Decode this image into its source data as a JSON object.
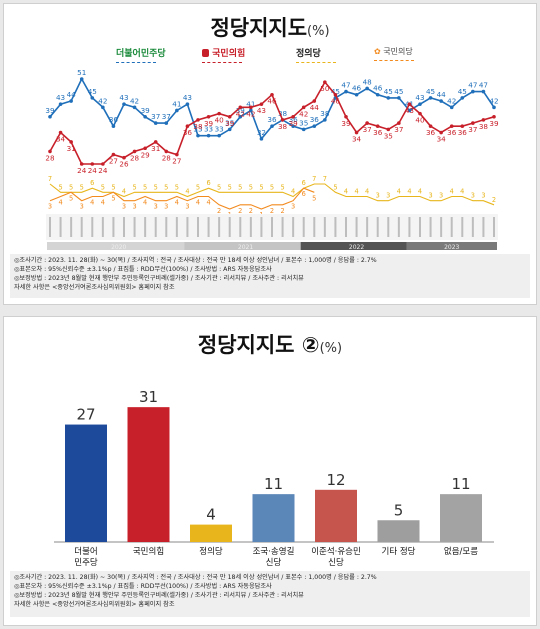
{
  "panel1": {
    "title": "정당지지도",
    "unit": "(%)",
    "legend": {
      "dem": "더불어민주당",
      "ppp": "국민의힘",
      "justice": "정의당",
      "new_label": "국민의당"
    },
    "periods": [
      "2020",
      "2021",
      "2022",
      "2023"
    ],
    "notes": [
      "◎조사기간 : 2023. 11. 28(화) ~ 30(목) / 조사지역 : 전국 / 조사대상 : 전국 만 18세 이상 성인남녀 / 표본수 : 1,000명 / 응답률 : 2.7%",
      "◎표본오차 : 95%신뢰수준 ±3.1%p / 표집틀 : RDD무선(100%) / 조사방법 : ARS 자동응답조사",
      "◎보정방법 : 2023년 8월말 현재 행안부 주민등록인구비례(셀가중) / 조사기관 : 리서치뷰 / 조사주관 : 리서치뷰",
      "자세한 사항은 <중앙선거여론조사심의위원회> 홈페이지 참조"
    ]
  },
  "panel2": {
    "title": "정당지지도 ②",
    "unit": "(%)",
    "notes": [
      "◎조사기간 : 2023. 11. 28(화) ~ 30(목) / 조사지역 : 전국 / 조사대상 : 전국 만 18세 이상 성인남녀 / 표본수 : 1,000명 / 응답률 : 2.7%",
      "◎표본오차 : 95%신뢰수준 ±3.1%p / 표집틀 : RDD무선(100%) / 조사방법 : ARS 자동응답조사",
      "◎보정방법 : 2023년 8월말 현재 행안부 주민등록인구비례(셀가중) / 조사기관 : 리서치뷰 / 조사주관 : 리서치뷰",
      "자세한 사항은 <중앙선거여론조사심의위원회> 홈페이지 참조"
    ]
  },
  "chart_data": [
    {
      "type": "line",
      "title": "정당지지도",
      "unit": "(%)",
      "legend_position": "top",
      "periods": [
        "2020",
        "2021",
        "2022",
        "2023"
      ],
      "series": [
        {
          "name": "더불어민주당",
          "color": "#1f6fba",
          "values": [
            39,
            43,
            44,
            51,
            45,
            42,
            36,
            43,
            42,
            39,
            37,
            37,
            41,
            43,
            33,
            33,
            33,
            35,
            39,
            41,
            32,
            36,
            38,
            36,
            35,
            36,
            38,
            45,
            47,
            46,
            48,
            46,
            45,
            45,
            41,
            43,
            45,
            44,
            42,
            45,
            47,
            47,
            42
          ]
        },
        {
          "name": "국민의힘",
          "color": "#c8202a",
          "values": [
            28,
            34,
            31,
            24,
            24,
            24,
            27,
            26,
            28,
            29,
            31,
            28,
            27,
            36,
            38,
            39,
            40,
            39,
            42,
            42,
            43,
            46,
            38,
            39,
            42,
            44,
            50,
            46,
            39,
            34,
            37,
            36,
            35,
            37,
            43,
            40,
            36,
            34,
            36,
            36,
            37,
            38,
            39
          ]
        },
        {
          "name": "정의당",
          "color": "#e8b61c",
          "values": [
            7,
            5,
            5,
            5,
            6,
            5,
            5,
            4,
            5,
            5,
            5,
            5,
            5,
            4,
            5,
            6,
            5,
            5,
            5,
            5,
            5,
            5,
            5,
            4,
            6,
            7,
            7,
            5,
            4,
            4,
            4,
            3,
            3,
            4,
            4,
            4,
            3,
            3,
            4,
            4,
            3,
            3,
            2
          ]
        },
        {
          "name": "국민의당",
          "color": "#f28a1e",
          "values": [
            3,
            4,
            5,
            3,
            4,
            4,
            5,
            3,
            3,
            4,
            3,
            3,
            4,
            3,
            4,
            4,
            2,
            1,
            2,
            2,
            1,
            2,
            2,
            3,
            6,
            5,
            null,
            null,
            null,
            null,
            null,
            null,
            null,
            null,
            null,
            null,
            null,
            null,
            null,
            null,
            null,
            null,
            null
          ]
        }
      ]
    },
    {
      "type": "bar",
      "title": "정당지지도 ②",
      "unit": "(%)",
      "categories": [
        "더불어\n민주당",
        "국민의힘",
        "정의당",
        "조국·송영길\n신당",
        "이준석·유승민\n신당",
        "기타 정당",
        "없음/모름"
      ],
      "values": [
        27,
        31,
        4,
        11,
        12,
        5,
        11
      ],
      "colors": [
        "#1e4a9c",
        "#c8202a",
        "#e8b61c",
        "#5b86b8",
        "#c6554e",
        "#9e9e9e",
        "#a3a3a3"
      ]
    }
  ]
}
